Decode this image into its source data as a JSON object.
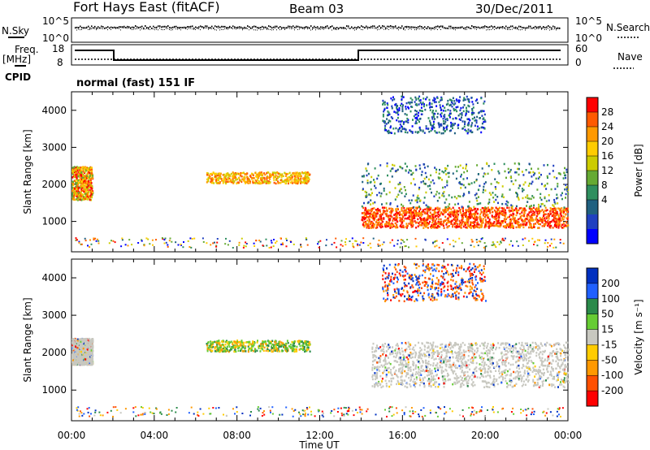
{
  "header": {
    "station": "Fort Hays East (fitACF)",
    "beam": "Beam 03",
    "date": "30/Dec/2011"
  },
  "params": {
    "nsky_label": "N.Sky",
    "nsky_ticks": [
      "10^5",
      "10^0"
    ],
    "nsearch_label": "N.Search",
    "nsearch_ticks": [
      "10^5",
      "10^0"
    ],
    "freq_label": "Freq.",
    "freq_unit": "[MHz]",
    "freq_ticks": [
      "18",
      "8"
    ],
    "nave_label": "Nave",
    "nave_ticks": [
      "60",
      "0"
    ],
    "cpid_label": "CPID",
    "cpid_value": "normal (fast) 151 IF"
  },
  "chart_data": [
    {
      "type": "heatmap",
      "panel": "power",
      "ylabel": "Slant Range [km]",
      "xlabel": "Time UT",
      "x_ticks": [
        "00:00",
        "04:00",
        "08:00",
        "12:00",
        "16:00",
        "20:00",
        "00:00"
      ],
      "x_range_hours": [
        0,
        24
      ],
      "y_ticks": [
        1000,
        2000,
        3000,
        4000
      ],
      "ylim": [
        180,
        4500
      ],
      "colorbar": {
        "label": "Power [dB]",
        "ticks": [
          "28",
          "24",
          "20",
          "16",
          "12",
          "8",
          "4"
        ],
        "colors": [
          "#ff0000",
          "#ff5a00",
          "#ff9900",
          "#ffcc00",
          "#cccc00",
          "#66aa33",
          "#2f8f5f",
          "#206080",
          "#2040c0",
          "#0000ff"
        ]
      },
      "regions": [
        {
          "t": [
            0.0,
            1.0
          ],
          "r": [
            1600,
            2500
          ],
          "level": "high-mid"
        },
        {
          "t": [
            6.5,
            11.5
          ],
          "r": [
            2050,
            2350
          ],
          "level": "mid"
        },
        {
          "t": [
            14.0,
            24.0
          ],
          "r": [
            850,
            1400
          ],
          "level": "high"
        },
        {
          "t": [
            14.0,
            24.0
          ],
          "r": [
            1400,
            2600
          ],
          "level": "low-mid"
        },
        {
          "t": [
            15.0,
            20.0
          ],
          "r": [
            3400,
            4400
          ],
          "level": "low"
        }
      ]
    },
    {
      "type": "heatmap",
      "panel": "velocity",
      "ylabel": "Slant Range [km]",
      "xlabel": "Time UT",
      "x_ticks": [
        "00:00",
        "04:00",
        "08:00",
        "12:00",
        "16:00",
        "20:00",
        "00:00"
      ],
      "x_range_hours": [
        0,
        24
      ],
      "y_ticks": [
        1000,
        2000,
        3000,
        4000
      ],
      "ylim": [
        180,
        4500
      ],
      "colorbar": {
        "label": "Velocity [m s^-1]",
        "ticks": [
          "200",
          "100",
          "50",
          "15",
          "-15",
          "-50",
          "-100",
          "-200"
        ],
        "colors": [
          "#0030c0",
          "#2060ff",
          "#2a8a4a",
          "#66cc33",
          "#c8c8c0",
          "#ffcc00",
          "#ff9900",
          "#ff5000",
          "#ff0000"
        ]
      },
      "regions": [
        {
          "t": [
            0.0,
            1.0
          ],
          "r": [
            1700,
            2400
          ],
          "level": "ground-scatter"
        },
        {
          "t": [
            6.5,
            11.5
          ],
          "r": [
            2050,
            2350
          ],
          "level": "mixed"
        },
        {
          "t": [
            14.5,
            24.0
          ],
          "r": [
            1100,
            2300
          ],
          "level": "ground-scatter"
        },
        {
          "t": [
            15.0,
            20.0
          ],
          "r": [
            3400,
            4400
          ],
          "level": "negative"
        }
      ]
    }
  ]
}
